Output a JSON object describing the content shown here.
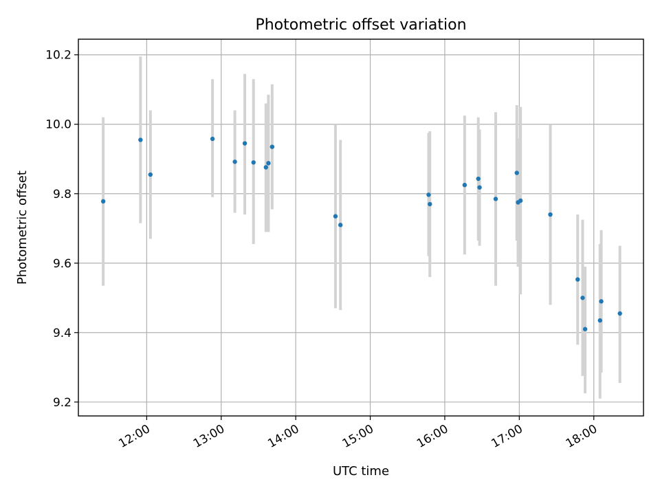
{
  "chart_data": {
    "type": "scatter",
    "title": "Photometric offset variation",
    "xlabel": "UTC time",
    "ylabel": "Photometric offset",
    "x_unit": "hours UTC",
    "xlim": [
      "11:05",
      "18:40"
    ],
    "ylim": [
      9.16,
      10.245
    ],
    "x_ticks": [
      "12:00",
      "13:00",
      "14:00",
      "15:00",
      "16:00",
      "17:00",
      "18:00"
    ],
    "y_ticks": [
      "9.2",
      "9.4",
      "9.6",
      "9.8",
      "10.0",
      "10.2"
    ],
    "grid": true,
    "legend": "none",
    "colors": {
      "points": "#1f77b4",
      "error_bars": "#d3d3d3",
      "grid": "#b0b0b0"
    },
    "series": [
      {
        "points": [
          {
            "x": "11:25",
            "y": 9.778,
            "y_low": 9.535,
            "y_high": 10.02
          },
          {
            "x": "11:55",
            "y": 9.955,
            "y_low": 9.715,
            "y_high": 10.195
          },
          {
            "x": "12:03",
            "y": 9.855,
            "y_low": 9.67,
            "y_high": 10.04
          },
          {
            "x": "12:53",
            "y": 9.958,
            "y_low": 9.79,
            "y_high": 10.13
          },
          {
            "x": "13:11",
            "y": 9.892,
            "y_low": 9.745,
            "y_high": 10.04
          },
          {
            "x": "13:19",
            "y": 9.945,
            "y_low": 9.74,
            "y_high": 10.145
          },
          {
            "x": "13:26",
            "y": 9.89,
            "y_low": 9.655,
            "y_high": 10.13
          },
          {
            "x": "13:36",
            "y": 9.876,
            "y_low": 9.69,
            "y_high": 10.06
          },
          {
            "x": "13:38",
            "y": 9.888,
            "y_low": 9.69,
            "y_high": 10.085
          },
          {
            "x": "13:41",
            "y": 9.935,
            "y_low": 9.755,
            "y_high": 10.115
          },
          {
            "x": "14:32",
            "y": 9.735,
            "y_low": 9.47,
            "y_high": 10.0
          },
          {
            "x": "14:36",
            "y": 9.71,
            "y_low": 9.465,
            "y_high": 9.955
          },
          {
            "x": "15:47",
            "y": 9.797,
            "y_low": 9.62,
            "y_high": 9.975
          },
          {
            "x": "15:48",
            "y": 9.77,
            "y_low": 9.56,
            "y_high": 9.98
          },
          {
            "x": "16:16",
            "y": 9.825,
            "y_low": 9.625,
            "y_high": 10.025
          },
          {
            "x": "16:27",
            "y": 9.843,
            "y_low": 9.665,
            "y_high": 10.02
          },
          {
            "x": "16:28",
            "y": 9.818,
            "y_low": 9.65,
            "y_high": 9.985
          },
          {
            "x": "16:41",
            "y": 9.785,
            "y_low": 9.535,
            "y_high": 10.035
          },
          {
            "x": "16:58",
            "y": 9.86,
            "y_low": 9.665,
            "y_high": 10.055
          },
          {
            "x": "16:59",
            "y": 9.775,
            "y_low": 9.59,
            "y_high": 9.96
          },
          {
            "x": "17:01",
            "y": 9.78,
            "y_low": 9.51,
            "y_high": 10.05
          },
          {
            "x": "17:25",
            "y": 9.74,
            "y_low": 9.48,
            "y_high": 10.0
          },
          {
            "x": "17:47",
            "y": 9.553,
            "y_low": 9.365,
            "y_high": 9.74
          },
          {
            "x": "17:51",
            "y": 9.5,
            "y_low": 9.275,
            "y_high": 9.725
          },
          {
            "x": "17:53",
            "y": 9.41,
            "y_low": 9.225,
            "y_high": 9.59
          },
          {
            "x": "18:05",
            "y": 9.435,
            "y_low": 9.21,
            "y_high": 9.655
          },
          {
            "x": "18:06",
            "y": 9.49,
            "y_low": 9.285,
            "y_high": 9.695
          },
          {
            "x": "18:21",
            "y": 9.455,
            "y_low": 9.255,
            "y_high": 9.65
          }
        ]
      }
    ]
  }
}
